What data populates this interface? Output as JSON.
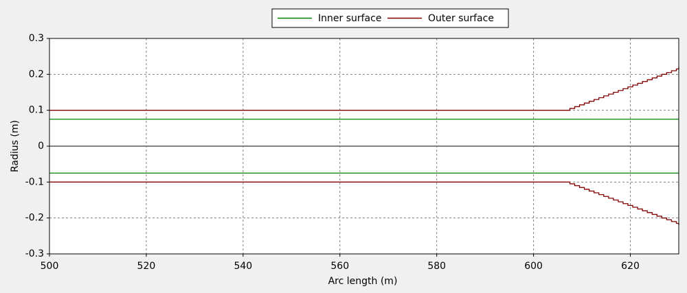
{
  "chart_data": {
    "type": "line",
    "step": "post",
    "xlabel": "Arc length (m)",
    "ylabel": "Radius (m)",
    "xlim": [
      500,
      630
    ],
    "xticks": [
      500,
      520,
      540,
      560,
      580,
      600,
      620
    ],
    "ylim": [
      -0.3,
      0.3
    ],
    "yticks": [
      0.3,
      0.2,
      0.1,
      0,
      -0.1,
      -0.2,
      -0.3
    ],
    "grid": true,
    "legend": "top",
    "series": [
      {
        "name": "Inner surface",
        "color": "#008000",
        "x": [
          500,
          630
        ],
        "upper": [
          0.075,
          0.075
        ],
        "lower": [
          -0.075,
          -0.075
        ]
      },
      {
        "name": "Outer surface",
        "color": "#800000",
        "x": [
          500,
          607.5,
          608.5,
          609.5,
          610.5,
          611.5,
          612.5,
          613.5,
          614.5,
          615.5,
          616.5,
          617.5,
          618.5,
          619.5,
          620.5,
          621.5,
          622.5,
          623.5,
          624.5,
          625.5,
          626.5,
          627.5,
          628.5,
          629.5,
          630
        ],
        "upper": [
          0.1,
          0.105,
          0.11,
          0.115,
          0.12,
          0.125,
          0.13,
          0.135,
          0.14,
          0.145,
          0.15,
          0.155,
          0.16,
          0.165,
          0.17,
          0.175,
          0.18,
          0.185,
          0.19,
          0.195,
          0.2,
          0.205,
          0.21,
          0.215,
          0.22
        ],
        "lower": [
          -0.1,
          -0.105,
          -0.11,
          -0.115,
          -0.12,
          -0.125,
          -0.13,
          -0.135,
          -0.14,
          -0.145,
          -0.15,
          -0.155,
          -0.16,
          -0.165,
          -0.17,
          -0.175,
          -0.18,
          -0.185,
          -0.19,
          -0.195,
          -0.2,
          -0.205,
          -0.21,
          -0.215,
          -0.22
        ]
      }
    ]
  }
}
